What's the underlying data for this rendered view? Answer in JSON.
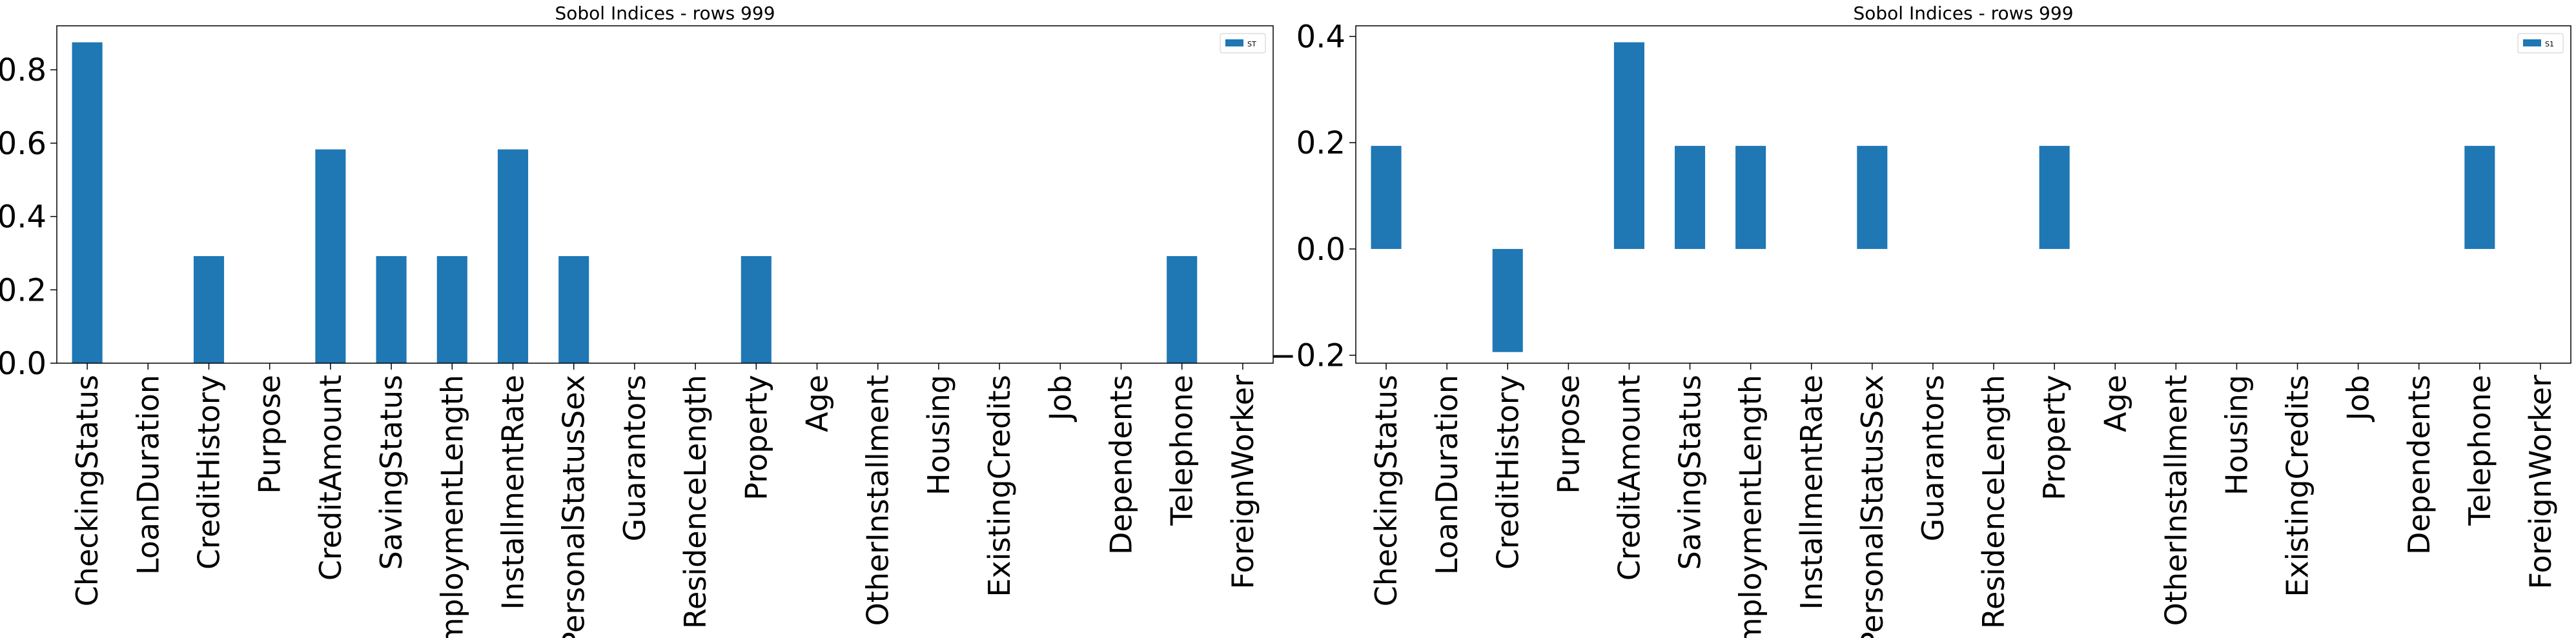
{
  "chart_data": [
    {
      "type": "bar",
      "title": "Sobol Indices - rows 999",
      "xlabel": "",
      "ylabel": "",
      "ylim": [
        0,
        0.92
      ],
      "yticks": [
        0.0,
        0.2,
        0.4,
        0.6,
        0.8
      ],
      "ytick_labels": [
        "0.0",
        "0.2",
        "0.4",
        "0.6",
        "0.8"
      ],
      "grid": false,
      "legend_position": "top-right",
      "categories": [
        "CheckingStatus",
        "LoanDuration",
        "CreditHistory",
        "Purpose",
        "CreditAmount",
        "SavingStatus",
        "EmploymentLength",
        "InstallmentRate",
        "PersonalStatusSex",
        "Guarantors",
        "ResidenceLength",
        "Property",
        "Age",
        "OtherInstallment",
        "Housing",
        "ExistingCredits",
        "Job",
        "Dependents",
        "Telephone",
        "ForeignWorker"
      ],
      "series": [
        {
          "name": "ST",
          "color": "#1f77b4",
          "values": [
            0.875,
            0,
            0.292,
            0,
            0.583,
            0.292,
            0.292,
            0.583,
            0.292,
            0,
            0,
            0.292,
            0,
            0,
            0,
            0,
            0,
            0,
            0.292,
            0
          ]
        }
      ]
    },
    {
      "type": "bar",
      "title": "Sobol Indices - rows 999",
      "xlabel": "",
      "ylabel": "",
      "ylim": [
        -0.215,
        0.42
      ],
      "yticks": [
        -0.2,
        0.0,
        0.2,
        0.4
      ],
      "ytick_labels": [
        "−0.2",
        "0.0",
        "0.2",
        "0.4"
      ],
      "grid": false,
      "legend_position": "top-right",
      "categories": [
        "CheckingStatus",
        "LoanDuration",
        "CreditHistory",
        "Purpose",
        "CreditAmount",
        "SavingStatus",
        "EmploymentLength",
        "InstallmentRate",
        "PersonalStatusSex",
        "Guarantors",
        "ResidenceLength",
        "Property",
        "Age",
        "OtherInstallment",
        "Housing",
        "ExistingCredits",
        "Job",
        "Dependents",
        "Telephone",
        "ForeignWorker"
      ],
      "series": [
        {
          "name": "S1",
          "color": "#1f77b4",
          "values": [
            0.194,
            0,
            -0.194,
            0,
            0.389,
            0.194,
            0.194,
            0,
            0.194,
            0,
            0,
            0.194,
            0,
            0,
            0,
            0,
            0,
            0,
            0.194,
            0
          ]
        }
      ]
    }
  ]
}
